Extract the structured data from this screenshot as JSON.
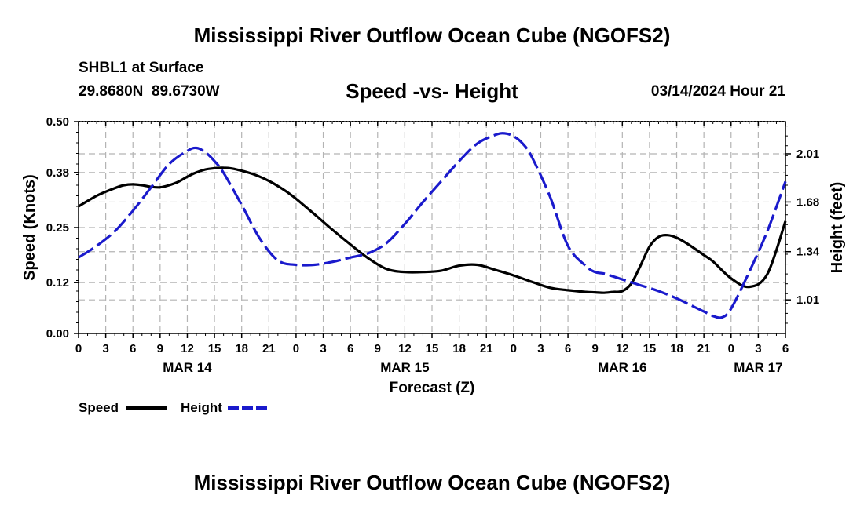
{
  "header": {
    "title": "Mississippi River Outflow Ocean Cube (NGOFS2)",
    "station": "SHBL1 at Surface",
    "coords": "29.8680N  89.6730W",
    "subtitle": "Speed -vs- Height",
    "datetime": "03/14/2024 Hour 21"
  },
  "footer": {
    "title": "Mississippi River Outflow Ocean Cube (NGOFS2)"
  },
  "colors": {
    "speed": "#000000",
    "height": "#1a1acc",
    "grid": "#b4b4b4"
  },
  "chart_data": {
    "type": "line",
    "xlabel": "Forecast (Z)",
    "ylabel": "Speed (Knots)",
    "y2label": "Height (feet)",
    "x_units": "hours since 03/14 00Z",
    "xlim": [
      0,
      78
    ],
    "ylim": [
      0,
      0.5
    ],
    "y2lim": [
      0.78,
      2.23
    ],
    "x_ticks": [
      0,
      3,
      6,
      9,
      12,
      15,
      18,
      21,
      24,
      27,
      30,
      33,
      36,
      39,
      42,
      45,
      48,
      51,
      54,
      57,
      60,
      63,
      66,
      69,
      72,
      75,
      78
    ],
    "x_tick_labels": [
      "0",
      "3",
      "6",
      "9",
      "12",
      "15",
      "18",
      "21",
      "0",
      "3",
      "6",
      "9",
      "12",
      "15",
      "18",
      "21",
      "0",
      "3",
      "6",
      "9",
      "12",
      "15",
      "18",
      "21",
      "0",
      "3",
      "6"
    ],
    "day_labels": [
      {
        "x": 12,
        "label": "MAR 14"
      },
      {
        "x": 36,
        "label": "MAR 15"
      },
      {
        "x": 60,
        "label": "MAR 16"
      },
      {
        "x": 75,
        "label": "MAR 17"
      }
    ],
    "y_ticks": [
      0.0,
      0.12,
      0.25,
      0.38,
      0.5
    ],
    "y_tick_labels": [
      "0.00",
      "0.12",
      "0.25",
      "0.38",
      "0.50"
    ],
    "y2_ticks": [
      1.01,
      1.34,
      1.68,
      2.01
    ],
    "y2_tick_labels": [
      "1.01",
      "1.34",
      "1.68",
      "2.01"
    ],
    "series": [
      {
        "name": "Speed",
        "axis": "left",
        "style": "solid",
        "x": [
          0,
          2,
          4,
          5,
          6,
          7,
          8,
          9,
          10,
          11,
          12,
          13,
          14,
          15,
          16,
          17,
          18,
          19,
          20,
          21,
          22,
          23,
          24,
          26,
          28,
          30,
          32,
          34,
          36,
          38,
          40,
          42,
          44,
          46,
          48,
          50,
          52,
          54,
          56,
          57,
          58,
          59,
          60,
          61,
          62,
          63,
          64,
          65,
          66,
          67,
          68,
          69,
          70,
          72,
          74,
          76,
          78
        ],
        "values": [
          0.3,
          0.325,
          0.343,
          0.35,
          0.352,
          0.35,
          0.346,
          0.345,
          0.35,
          0.358,
          0.37,
          0.38,
          0.387,
          0.39,
          0.391,
          0.389,
          0.384,
          0.378,
          0.37,
          0.36,
          0.348,
          0.334,
          0.318,
          0.282,
          0.245,
          0.21,
          0.177,
          0.152,
          0.145,
          0.145,
          0.148,
          0.16,
          0.162,
          0.15,
          0.137,
          0.122,
          0.108,
          0.102,
          0.098,
          0.097,
          0.096,
          0.098,
          0.1,
          0.118,
          0.16,
          0.205,
          0.228,
          0.232,
          0.226,
          0.214,
          0.2,
          0.185,
          0.17,
          0.13,
          0.11,
          0.14,
          0.265
        ]
      },
      {
        "name": "Height",
        "axis": "right",
        "style": "dashed",
        "x": [
          0,
          2,
          4,
          6,
          8,
          10,
          12,
          13,
          14,
          15,
          16,
          18,
          20,
          22,
          24,
          26,
          28,
          30,
          32,
          34,
          36,
          38,
          40,
          42,
          44,
          46,
          47,
          48,
          49,
          50,
          52,
          54,
          56,
          57,
          58,
          59,
          60,
          62,
          64,
          66,
          68,
          69,
          70,
          71,
          72,
          74,
          76,
          78
        ],
        "values": [
          1.3,
          1.38,
          1.48,
          1.62,
          1.78,
          1.94,
          2.03,
          2.05,
          2.02,
          1.96,
          1.88,
          1.66,
          1.43,
          1.28,
          1.25,
          1.25,
          1.27,
          1.3,
          1.33,
          1.4,
          1.53,
          1.68,
          1.82,
          1.96,
          2.08,
          2.14,
          2.15,
          2.13,
          2.08,
          1.99,
          1.72,
          1.38,
          1.24,
          1.2,
          1.19,
          1.17,
          1.15,
          1.11,
          1.07,
          1.02,
          0.96,
          0.93,
          0.9,
          0.89,
          0.95,
          1.2,
          1.48,
          1.82
        ]
      }
    ],
    "legend": [
      {
        "name": "Speed",
        "style": "solid"
      },
      {
        "name": "Height",
        "style": "dashed"
      }
    ],
    "grid": true
  }
}
